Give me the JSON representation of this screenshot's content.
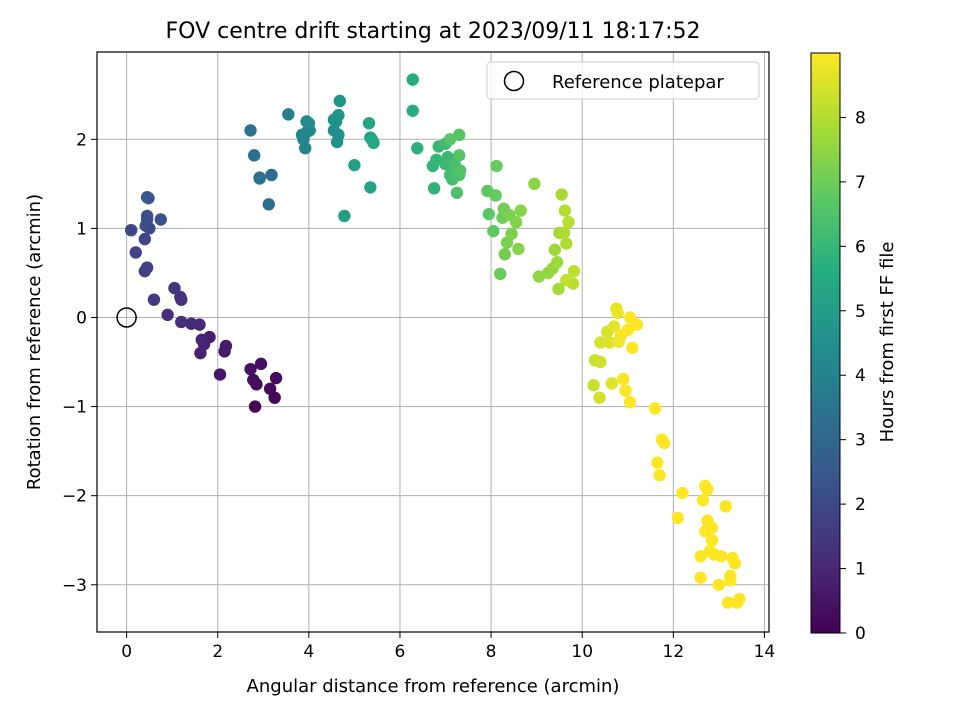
{
  "chart_data": {
    "type": "scatter",
    "title": "FOV centre drift starting at 2023/09/11 18:17:52",
    "xlabel": "Angular distance from reference (arcmin)",
    "ylabel": "Rotation from reference (arcmin)",
    "xlim": [
      -0.65,
      14.1
    ],
    "ylim": [
      -3.53,
      2.98
    ],
    "xticks": [
      0,
      2,
      4,
      6,
      8,
      10,
      12,
      14
    ],
    "yticks": [
      -3,
      -2,
      -1,
      0,
      1,
      2
    ],
    "xtick_labels": [
      "0",
      "2",
      "4",
      "6",
      "8",
      "10",
      "12",
      "14"
    ],
    "ytick_labels": [
      "−3",
      "−2",
      "−1",
      "0",
      "1",
      "2"
    ],
    "grid": true,
    "legend": {
      "position": "top-right",
      "entries": [
        {
          "label": "Reference platepar",
          "marker": "open-circle"
        }
      ]
    },
    "reference_point": {
      "x": 0.0,
      "y": 0.0
    },
    "colorbar": {
      "label": "Hours from first FF file",
      "colormap": "viridis",
      "range": [
        0,
        9
      ],
      "ticks": [
        0,
        1,
        2,
        3,
        4,
        5,
        6,
        7,
        8
      ],
      "tick_labels": [
        "0",
        "1",
        "2",
        "3",
        "4",
        "5",
        "6",
        "7",
        "8"
      ]
    },
    "points": [
      {
        "x": 2.82,
        "y": -1.0,
        "t": 0.1
      },
      {
        "x": 3.25,
        "y": -0.9,
        "t": 0.15
      },
      {
        "x": 3.15,
        "y": -0.8,
        "t": 0.2
      },
      {
        "x": 2.85,
        "y": -0.75,
        "t": 0.25
      },
      {
        "x": 3.28,
        "y": -0.68,
        "t": 0.3
      },
      {
        "x": 2.78,
        "y": -0.7,
        "t": 0.35
      },
      {
        "x": 2.95,
        "y": -0.52,
        "t": 0.4
      },
      {
        "x": 2.72,
        "y": -0.58,
        "t": 0.45
      },
      {
        "x": 2.05,
        "y": -0.64,
        "t": 0.55
      },
      {
        "x": 2.15,
        "y": -0.38,
        "t": 0.65
      },
      {
        "x": 2.18,
        "y": -0.32,
        "t": 0.7
      },
      {
        "x": 1.82,
        "y": -0.22,
        "t": 0.8
      },
      {
        "x": 1.7,
        "y": -0.3,
        "t": 0.85
      },
      {
        "x": 1.62,
        "y": -0.4,
        "t": 0.9
      },
      {
        "x": 1.65,
        "y": -0.25,
        "t": 0.95
      },
      {
        "x": 1.6,
        "y": -0.08,
        "t": 1.05
      },
      {
        "x": 1.42,
        "y": -0.07,
        "t": 1.1
      },
      {
        "x": 1.2,
        "y": -0.05,
        "t": 1.15
      },
      {
        "x": 0.9,
        "y": 0.03,
        "t": 1.2
      },
      {
        "x": 1.2,
        "y": 0.2,
        "t": 1.3
      },
      {
        "x": 1.18,
        "y": 0.23,
        "t": 1.35
      },
      {
        "x": 1.05,
        "y": 0.33,
        "t": 1.4
      },
      {
        "x": 0.6,
        "y": 0.2,
        "t": 1.45
      },
      {
        "x": 0.4,
        "y": 0.52,
        "t": 1.7
      },
      {
        "x": 0.45,
        "y": 0.56,
        "t": 1.75
      },
      {
        "x": 0.2,
        "y": 0.73,
        "t": 1.85
      },
      {
        "x": 0.4,
        "y": 0.88,
        "t": 1.9
      },
      {
        "x": 0.1,
        "y": 0.98,
        "t": 1.95
      },
      {
        "x": 0.5,
        "y": 1.0,
        "t": 2.05
      },
      {
        "x": 0.42,
        "y": 1.03,
        "t": 2.1
      },
      {
        "x": 0.45,
        "y": 1.1,
        "t": 2.15
      },
      {
        "x": 0.45,
        "y": 1.14,
        "t": 2.2
      },
      {
        "x": 0.75,
        "y": 1.1,
        "t": 2.3
      },
      {
        "x": 0.45,
        "y": 1.35,
        "t": 2.4
      },
      {
        "x": 0.48,
        "y": 1.34,
        "t": 2.45
      },
      {
        "x": 3.12,
        "y": 1.27,
        "t": 3.15
      },
      {
        "x": 2.92,
        "y": 1.56,
        "t": 3.2
      },
      {
        "x": 3.18,
        "y": 1.6,
        "t": 3.25
      },
      {
        "x": 2.8,
        "y": 1.82,
        "t": 3.3
      },
      {
        "x": 2.92,
        "y": 1.57,
        "t": 3.35
      },
      {
        "x": 2.72,
        "y": 2.1,
        "t": 3.45
      },
      {
        "x": 3.55,
        "y": 2.28,
        "t": 3.9
      },
      {
        "x": 3.92,
        "y": 1.9,
        "t": 4.0
      },
      {
        "x": 3.88,
        "y": 2.0,
        "t": 4.05
      },
      {
        "x": 3.95,
        "y": 2.08,
        "t": 4.1
      },
      {
        "x": 3.85,
        "y": 2.05,
        "t": 4.15
      },
      {
        "x": 4.02,
        "y": 2.1,
        "t": 4.2
      },
      {
        "x": 3.95,
        "y": 2.2,
        "t": 4.25
      },
      {
        "x": 4.0,
        "y": 2.18,
        "t": 4.3
      },
      {
        "x": 4.55,
        "y": 2.1,
        "t": 4.4
      },
      {
        "x": 4.62,
        "y": 1.97,
        "t": 4.45
      },
      {
        "x": 4.65,
        "y": 2.05,
        "t": 4.5
      },
      {
        "x": 4.6,
        "y": 2.2,
        "t": 4.55
      },
      {
        "x": 4.55,
        "y": 2.22,
        "t": 4.6
      },
      {
        "x": 4.65,
        "y": 2.27,
        "t": 4.65
      },
      {
        "x": 4.68,
        "y": 2.43,
        "t": 4.7
      },
      {
        "x": 4.78,
        "y": 1.14,
        "t": 5.0
      },
      {
        "x": 5.0,
        "y": 1.71,
        "t": 5.1
      },
      {
        "x": 5.35,
        "y": 1.46,
        "t": 5.2
      },
      {
        "x": 5.35,
        "y": 2.02,
        "t": 5.25
      },
      {
        "x": 5.32,
        "y": 2.18,
        "t": 5.3
      },
      {
        "x": 5.38,
        "y": 2.0,
        "t": 5.35
      },
      {
        "x": 5.42,
        "y": 1.96,
        "t": 5.4
      },
      {
        "x": 6.28,
        "y": 2.32,
        "t": 5.55
      },
      {
        "x": 6.28,
        "y": 2.67,
        "t": 5.6
      },
      {
        "x": 6.38,
        "y": 1.9,
        "t": 5.7
      },
      {
        "x": 6.75,
        "y": 1.45,
        "t": 5.85
      },
      {
        "x": 6.72,
        "y": 1.7,
        "t": 5.9
      },
      {
        "x": 6.8,
        "y": 1.77,
        "t": 5.95
      },
      {
        "x": 6.85,
        "y": 1.92,
        "t": 6.0
      },
      {
        "x": 7.0,
        "y": 1.72,
        "t": 6.05
      },
      {
        "x": 7.05,
        "y": 1.8,
        "t": 6.1
      },
      {
        "x": 7.0,
        "y": 1.95,
        "t": 6.15
      },
      {
        "x": 7.1,
        "y": 1.6,
        "t": 6.2
      },
      {
        "x": 7.15,
        "y": 1.55,
        "t": 6.25
      },
      {
        "x": 7.2,
        "y": 1.6,
        "t": 6.3
      },
      {
        "x": 7.2,
        "y": 1.72,
        "t": 6.35
      },
      {
        "x": 7.25,
        "y": 1.4,
        "t": 6.4
      },
      {
        "x": 7.3,
        "y": 1.6,
        "t": 6.45
      },
      {
        "x": 7.32,
        "y": 1.65,
        "t": 6.5
      },
      {
        "x": 7.3,
        "y": 1.82,
        "t": 6.55
      },
      {
        "x": 7.3,
        "y": 2.05,
        "t": 6.6
      },
      {
        "x": 7.1,
        "y": 2.0,
        "t": 6.65
      },
      {
        "x": 7.95,
        "y": 1.16,
        "t": 6.7
      },
      {
        "x": 7.92,
        "y": 1.42,
        "t": 6.75
      },
      {
        "x": 8.05,
        "y": 0.97,
        "t": 6.8
      },
      {
        "x": 8.1,
        "y": 1.37,
        "t": 6.85
      },
      {
        "x": 8.12,
        "y": 1.7,
        "t": 6.9
      },
      {
        "x": 8.2,
        "y": 0.49,
        "t": 6.95
      },
      {
        "x": 8.25,
        "y": 1.12,
        "t": 7.0
      },
      {
        "x": 8.28,
        "y": 1.22,
        "t": 7.05
      },
      {
        "x": 8.3,
        "y": 0.71,
        "t": 7.1
      },
      {
        "x": 8.35,
        "y": 0.84,
        "t": 7.15
      },
      {
        "x": 8.4,
        "y": 1.15,
        "t": 7.2
      },
      {
        "x": 8.45,
        "y": 0.94,
        "t": 7.25
      },
      {
        "x": 8.55,
        "y": 1.07,
        "t": 7.3
      },
      {
        "x": 8.6,
        "y": 0.77,
        "t": 7.35
      },
      {
        "x": 8.65,
        "y": 1.2,
        "t": 7.4
      },
      {
        "x": 8.95,
        "y": 1.5,
        "t": 7.45
      },
      {
        "x": 9.05,
        "y": 0.46,
        "t": 7.5
      },
      {
        "x": 9.25,
        "y": 0.5,
        "t": 7.55
      },
      {
        "x": 9.35,
        "y": 0.55,
        "t": 7.6
      },
      {
        "x": 9.4,
        "y": 0.76,
        "t": 7.65
      },
      {
        "x": 9.45,
        "y": 0.62,
        "t": 7.7
      },
      {
        "x": 9.5,
        "y": 0.95,
        "t": 7.75
      },
      {
        "x": 9.48,
        "y": 0.32,
        "t": 7.8
      },
      {
        "x": 9.55,
        "y": 1.38,
        "t": 7.85
      },
      {
        "x": 9.6,
        "y": 0.95,
        "t": 7.9
      },
      {
        "x": 9.65,
        "y": 0.83,
        "t": 7.95
      },
      {
        "x": 9.62,
        "y": 1.2,
        "t": 8.0
      },
      {
        "x": 9.7,
        "y": 1.07,
        "t": 8.05
      },
      {
        "x": 9.8,
        "y": 0.38,
        "t": 8.1
      },
      {
        "x": 9.82,
        "y": 0.52,
        "t": 8.15
      },
      {
        "x": 9.65,
        "y": 0.42,
        "t": 8.2
      },
      {
        "x": 10.25,
        "y": -0.76,
        "t": 8.25
      },
      {
        "x": 10.28,
        "y": -0.48,
        "t": 8.3
      },
      {
        "x": 10.4,
        "y": -0.5,
        "t": 8.35
      },
      {
        "x": 10.38,
        "y": -0.9,
        "t": 8.4
      },
      {
        "x": 10.4,
        "y": -0.28,
        "t": 8.45
      },
      {
        "x": 10.55,
        "y": -0.16,
        "t": 8.5
      },
      {
        "x": 10.6,
        "y": -0.28,
        "t": 8.55
      },
      {
        "x": 10.65,
        "y": -0.74,
        "t": 8.6
      },
      {
        "x": 10.7,
        "y": -0.1,
        "t": 8.65
      },
      {
        "x": 10.75,
        "y": 0.1,
        "t": 8.7
      },
      {
        "x": 10.78,
        "y": 0.05,
        "t": 8.75
      },
      {
        "x": 10.8,
        "y": -0.27,
        "t": 8.8
      },
      {
        "x": 10.85,
        "y": -0.2,
        "t": 8.85
      },
      {
        "x": 10.9,
        "y": -0.69,
        "t": 8.9
      },
      {
        "x": 10.95,
        "y": -0.82,
        "t": 8.95
      },
      {
        "x": 11.0,
        "y": -0.14,
        "t": 9.0
      },
      {
        "x": 11.05,
        "y": 0.0,
        "t": 9.0
      },
      {
        "x": 11.05,
        "y": -0.95,
        "t": 9.0
      },
      {
        "x": 11.1,
        "y": -0.34,
        "t": 9.0
      },
      {
        "x": 11.2,
        "y": -0.08,
        "t": 9.0
      },
      {
        "x": 11.6,
        "y": -1.02,
        "t": 9.05
      },
      {
        "x": 11.65,
        "y": -1.63,
        "t": 9.1
      },
      {
        "x": 11.7,
        "y": -1.77,
        "t": 9.15
      },
      {
        "x": 11.75,
        "y": -1.37,
        "t": 9.2
      },
      {
        "x": 11.8,
        "y": -1.41,
        "t": 9.25
      },
      {
        "x": 12.1,
        "y": -2.25,
        "t": 9.5
      },
      {
        "x": 12.2,
        "y": -1.97,
        "t": 9.55
      },
      {
        "x": 12.6,
        "y": -2.92,
        "t": 9.6
      },
      {
        "x": 12.6,
        "y": -2.68,
        "t": 9.65
      },
      {
        "x": 12.65,
        "y": -2.05,
        "t": 9.7
      },
      {
        "x": 12.7,
        "y": -1.89,
        "t": 9.75
      },
      {
        "x": 12.7,
        "y": -2.4,
        "t": 9.8
      },
      {
        "x": 12.75,
        "y": -1.93,
        "t": 9.85
      },
      {
        "x": 12.75,
        "y": -2.28,
        "t": 9.9
      },
      {
        "x": 12.8,
        "y": -2.62,
        "t": 9.95
      },
      {
        "x": 12.85,
        "y": -2.36,
        "t": 10.0
      },
      {
        "x": 12.85,
        "y": -2.5,
        "t": 10.0
      },
      {
        "x": 12.9,
        "y": -2.66,
        "t": 10.0
      },
      {
        "x": 13.0,
        "y": -3.0,
        "t": 10.0
      },
      {
        "x": 13.05,
        "y": -2.68,
        "t": 10.0
      },
      {
        "x": 13.15,
        "y": -2.12,
        "t": 10.0
      },
      {
        "x": 13.2,
        "y": -3.2,
        "t": 10.0
      },
      {
        "x": 13.25,
        "y": -2.95,
        "t": 10.0
      },
      {
        "x": 13.25,
        "y": -2.9,
        "t": 10.0
      },
      {
        "x": 13.3,
        "y": -2.7,
        "t": 10.0
      },
      {
        "x": 13.35,
        "y": -2.76,
        "t": 10.0
      },
      {
        "x": 13.4,
        "y": -3.2,
        "t": 10.0
      },
      {
        "x": 13.45,
        "y": -3.16,
        "t": 10.0
      }
    ]
  }
}
